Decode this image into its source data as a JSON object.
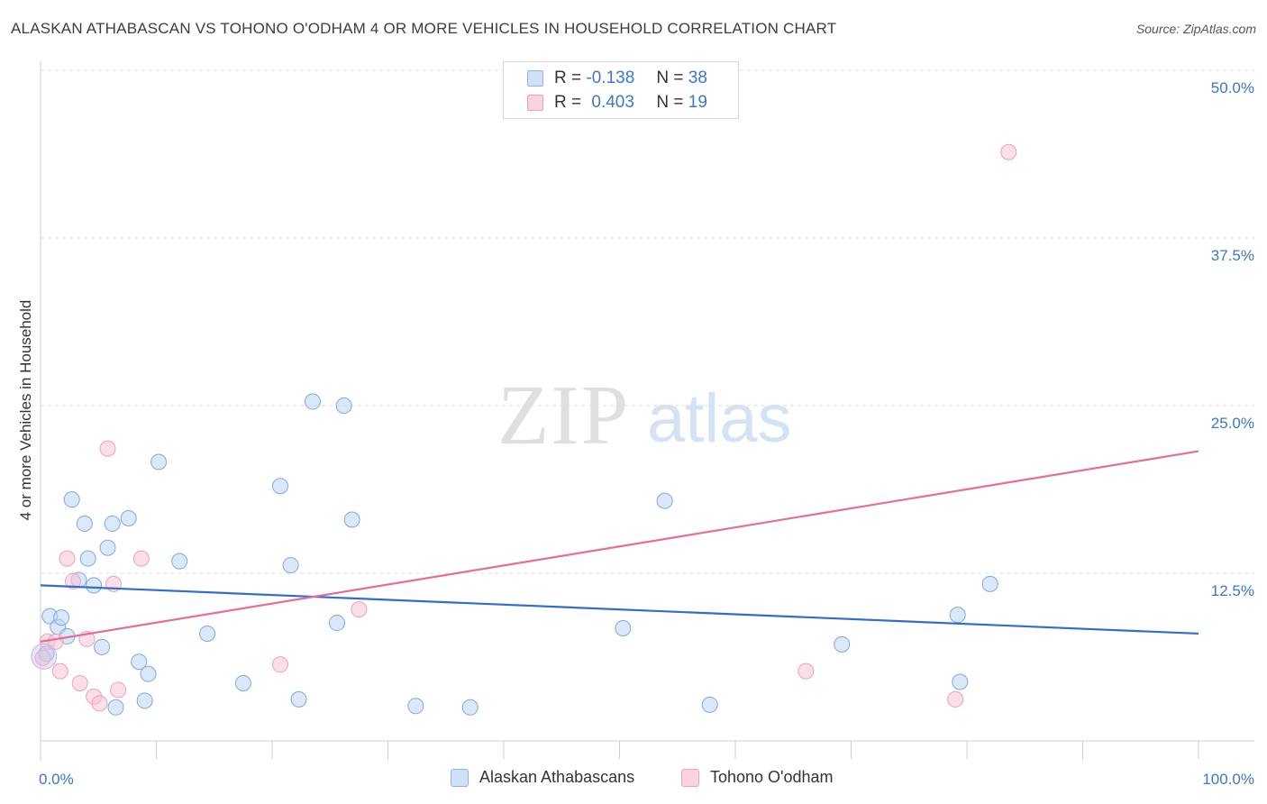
{
  "header": {
    "title": "ALASKAN ATHABASCAN VS TOHONO O'ODHAM 4 OR MORE VEHICLES IN HOUSEHOLD CORRELATION CHART",
    "source": "Source: ZipAtlas.com"
  },
  "watermark": {
    "zip": "ZIP",
    "atlas": "atlas"
  },
  "legend": {
    "rows": [
      {
        "r_label": "R =",
        "r_value": "-0.138",
        "n_label": "N =",
        "n_value": "38",
        "color": "#a9c8f0"
      },
      {
        "r_label": "R =",
        "r_value": "0.403",
        "n_label": "N =",
        "n_value": "19",
        "color": "#f5b6ca"
      }
    ]
  },
  "bottom_legend": {
    "items": [
      {
        "label": "Alaskan Athabascans",
        "color": "#a9c8f0"
      },
      {
        "label": "Tohono O'odham",
        "color": "#f5b6ca"
      }
    ]
  },
  "chart_data": {
    "type": "scatter",
    "title": "ALASKAN ATHABASCAN VS TOHONO O'ODHAM 4 OR MORE VEHICLES IN HOUSEHOLD CORRELATION CHART",
    "xlabel": "",
    "ylabel": "4 or more Vehicles in Household",
    "xlim": [
      0,
      100
    ],
    "ylim": [
      0,
      50
    ],
    "x_tick_labels": [
      "0.0%",
      "100.0%"
    ],
    "y_ticks": [
      12.5,
      25.0,
      37.5,
      50.0
    ],
    "y_tick_labels": [
      "12.5%",
      "25.0%",
      "37.5%",
      "50.0%"
    ],
    "grid": true,
    "legend_position": "top-center",
    "series": [
      {
        "name": "Alaskan Athabascans",
        "color": "#a9c8f0",
        "line_color": "#2f6fcb",
        "trend": {
          "x": [
            0,
            100
          ],
          "y": [
            11.6,
            8.0
          ]
        },
        "points": [
          [
            0.5,
            6.5
          ],
          [
            0.8,
            9.3
          ],
          [
            1.5,
            8.5
          ],
          [
            1.8,
            9.2
          ],
          [
            2.3,
            7.8
          ],
          [
            2.7,
            18.0
          ],
          [
            3.3,
            12.0
          ],
          [
            3.8,
            16.2
          ],
          [
            4.1,
            13.6
          ],
          [
            4.6,
            11.6
          ],
          [
            5.3,
            7.0
          ],
          [
            5.8,
            14.4
          ],
          [
            6.2,
            16.2
          ],
          [
            6.5,
            2.5
          ],
          [
            7.6,
            16.6
          ],
          [
            8.5,
            5.9
          ],
          [
            9.0,
            3.0
          ],
          [
            9.3,
            5.0
          ],
          [
            10.2,
            20.8
          ],
          [
            12.0,
            13.4
          ],
          [
            14.4,
            8.0
          ],
          [
            17.5,
            4.3
          ],
          [
            20.7,
            19.0
          ],
          [
            21.6,
            13.1
          ],
          [
            22.3,
            3.1
          ],
          [
            23.5,
            25.3
          ],
          [
            25.6,
            8.8
          ],
          [
            26.2,
            25.0
          ],
          [
            26.9,
            16.5
          ],
          [
            32.4,
            2.6
          ],
          [
            37.1,
            2.5
          ],
          [
            50.3,
            8.4
          ],
          [
            53.9,
            17.9
          ],
          [
            57.8,
            2.7
          ],
          [
            69.2,
            7.2
          ],
          [
            79.2,
            9.4
          ],
          [
            79.4,
            4.4
          ],
          [
            82.0,
            11.7
          ]
        ]
      },
      {
        "name": "Tohono O'odham",
        "color": "#f5b6ca",
        "line_color": "#e46e98",
        "trend": {
          "x": [
            0,
            100
          ],
          "y": [
            7.4,
            21.6
          ]
        },
        "points": [
          [
            0.2,
            6.2
          ],
          [
            0.6,
            7.4
          ],
          [
            1.3,
            7.4
          ],
          [
            1.7,
            5.2
          ],
          [
            2.3,
            13.6
          ],
          [
            2.8,
            11.9
          ],
          [
            3.4,
            4.3
          ],
          [
            4.0,
            7.6
          ],
          [
            4.6,
            3.3
          ],
          [
            5.1,
            2.8
          ],
          [
            5.8,
            21.8
          ],
          [
            6.3,
            11.7
          ],
          [
            6.7,
            3.8
          ],
          [
            8.7,
            13.6
          ],
          [
            20.7,
            5.7
          ],
          [
            27.5,
            9.8
          ],
          [
            66.1,
            5.2
          ],
          [
            79.0,
            3.1
          ],
          [
            83.6,
            43.9
          ]
        ]
      }
    ]
  }
}
